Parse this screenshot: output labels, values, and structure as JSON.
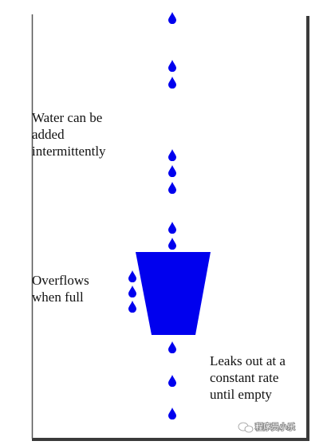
{
  "labels": {
    "added": [
      "Water can be",
      "added",
      "intermittently"
    ],
    "overflow": [
      "Overflows",
      "when full"
    ],
    "leaks": [
      "Leaks out at a",
      "constant rate",
      "until empty"
    ]
  },
  "watermark": {
    "text": "程序员小乐"
  },
  "colors": {
    "water": "#0000ee",
    "frame": "#555555",
    "text": "#111111"
  },
  "icons": {
    "drop": "water-drop-icon",
    "watermark": "wechat-icon"
  }
}
